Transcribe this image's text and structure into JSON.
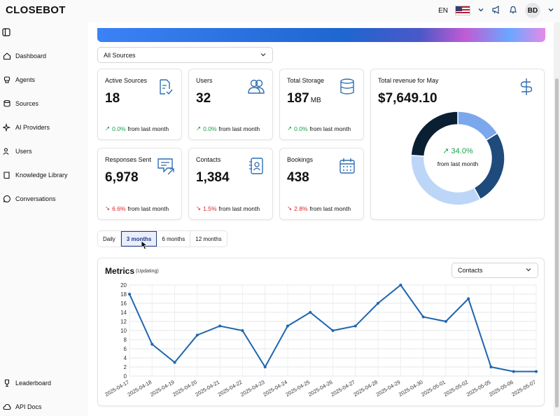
{
  "app": {
    "logo": "CLOSEBOT"
  },
  "topbar": {
    "lang": "EN",
    "avatar_initials": "BD"
  },
  "sidebar": {
    "items": [
      {
        "label": "Dashboard",
        "icon": "home-icon"
      },
      {
        "label": "Agents",
        "icon": "robot-icon"
      },
      {
        "label": "Sources",
        "icon": "database-icon"
      },
      {
        "label": "AI Providers",
        "icon": "sparkles-icon"
      },
      {
        "label": "Users",
        "icon": "users-icon"
      },
      {
        "label": "Knowledge Library",
        "icon": "book-icon"
      },
      {
        "label": "Conversations",
        "icon": "chat-icon"
      },
      {
        "label": "Leaderboard",
        "icon": "trophy-icon"
      },
      {
        "label": "API Docs",
        "icon": "cloud-icon"
      }
    ]
  },
  "filters": {
    "source_selected": "All Sources",
    "metric_selected": "Contacts"
  },
  "cards": {
    "active_sources": {
      "title": "Active Sources",
      "value": "18",
      "change": "0.0%",
      "change_text": "from last month",
      "trend": "up"
    },
    "users": {
      "title": "Users",
      "value": "32",
      "change": "0.0%",
      "change_text": "from last month",
      "trend": "up"
    },
    "storage": {
      "title": "Total Storage",
      "value": "187",
      "unit": "MB",
      "change": "0.0%",
      "change_text": "from last month",
      "trend": "up"
    },
    "responses": {
      "title": "Responses Sent",
      "value": "6,978",
      "change": "6.6%",
      "change_text": "from last month",
      "trend": "down"
    },
    "contacts": {
      "title": "Contacts",
      "value": "1,384",
      "change": "1.5%",
      "change_text": "from last month",
      "trend": "down"
    },
    "bookings": {
      "title": "Bookings",
      "value": "438",
      "change": "2.8%",
      "change_text": "from last month",
      "trend": "down"
    }
  },
  "revenue": {
    "title": "Total revenue for May",
    "value": "$7,649.10",
    "change": "34.0%",
    "change_text": "from last month",
    "segments": [
      {
        "color": "#7ba7ec",
        "fraction": 0.16
      },
      {
        "color": "#1e4a7c",
        "fraction": 0.26
      },
      {
        "color": "#bcd6f7",
        "fraction": 0.34
      },
      {
        "color": "#0b1f33",
        "fraction": 0.24
      }
    ]
  },
  "range_tabs": [
    {
      "label": "Daily",
      "active": false
    },
    {
      "label": "3 months",
      "active": true
    },
    {
      "label": "6 months",
      "active": false
    },
    {
      "label": "12 months",
      "active": false
    }
  ],
  "metrics": {
    "title": "Metrics",
    "status": "(Updating)"
  },
  "chart_data": {
    "type": "line",
    "x": [
      "2025-04-17",
      "2025-04-18",
      "2025-04-19",
      "2025-04-20",
      "2025-04-21",
      "2025-04-22",
      "2025-04-23",
      "2025-04-24",
      "2025-04-25",
      "2025-04-26",
      "2025-04-27",
      "2025-04-28",
      "2025-04-29",
      "2025-04-30",
      "2025-05-01",
      "2025-05-02",
      "2025-05-05",
      "2025-05-06",
      "2025-05-07"
    ],
    "series": [
      {
        "values": [
          18,
          7,
          3,
          9,
          11,
          10,
          2,
          11,
          14,
          10,
          11,
          16,
          20,
          13,
          12,
          17,
          2,
          1,
          1
        ],
        "color": "#1e66b0"
      }
    ],
    "yticks": [
      0,
      2,
      4,
      6,
      8,
      10,
      12,
      14,
      16,
      18,
      20
    ],
    "ylim": [
      0,
      20
    ],
    "grid": true
  }
}
